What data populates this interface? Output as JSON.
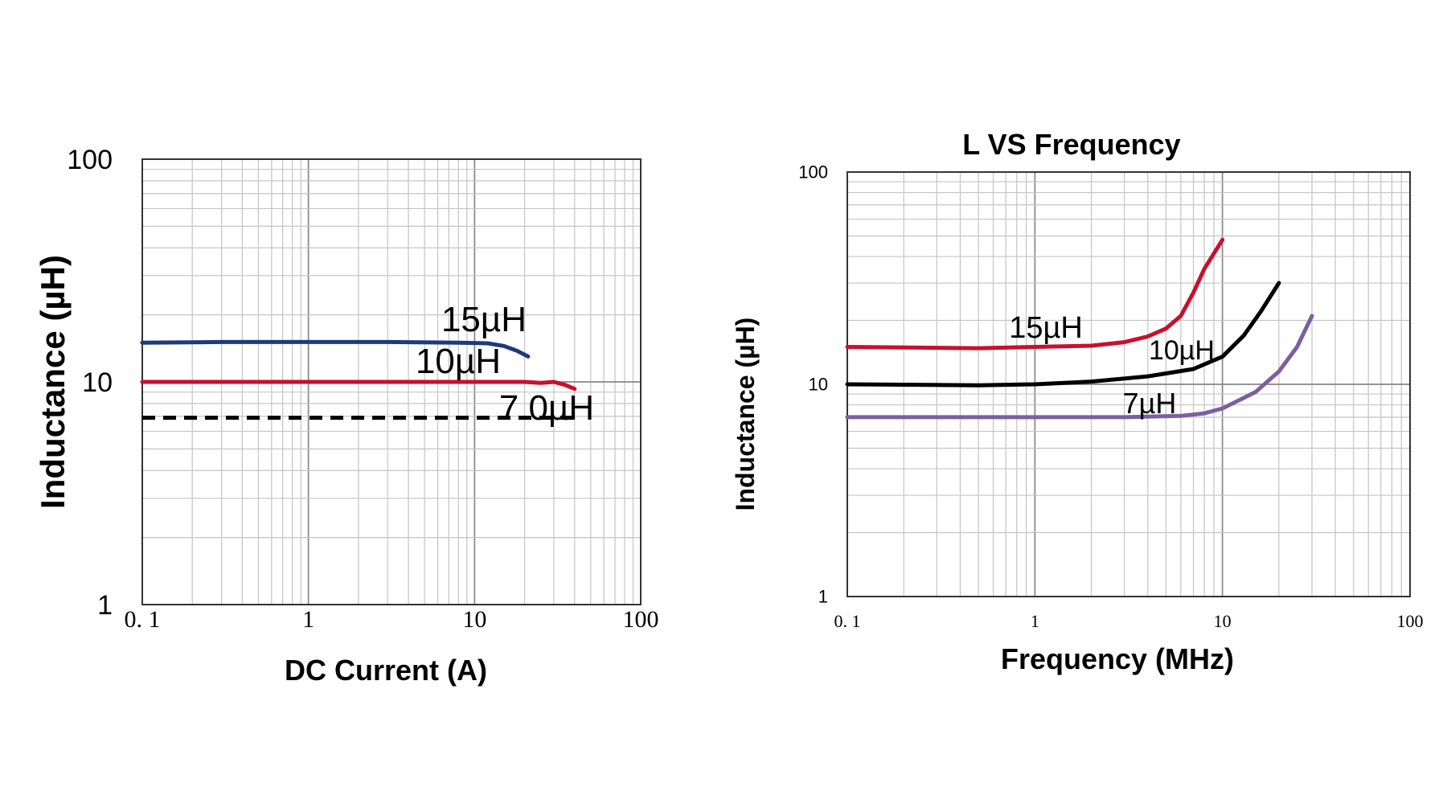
{
  "chart_data": [
    {
      "type": "line",
      "title": "",
      "xlabel": "DC Current (A)",
      "ylabel": "Inductance (µH)",
      "xscale": "log",
      "yscale": "log",
      "xlim": [
        0.1,
        100
      ],
      "ylim": [
        1,
        100
      ],
      "xticks": [
        "0. 1",
        "1",
        "10",
        "100"
      ],
      "yticks": [
        "1",
        "10",
        "100"
      ],
      "grid": true,
      "series": [
        {
          "name": "15µH",
          "color": "#1f3a7a",
          "style": "solid",
          "x": [
            0.1,
            0.3,
            1,
            3,
            8,
            12,
            15,
            18,
            21
          ],
          "y": [
            15,
            15.1,
            15.1,
            15.1,
            15,
            14.9,
            14.5,
            13.8,
            13.0
          ]
        },
        {
          "name": "10µH",
          "color": "#c8102e",
          "style": "solid",
          "x": [
            0.1,
            1,
            10,
            20,
            25,
            30,
            35,
            40
          ],
          "y": [
            10,
            10,
            10,
            10,
            9.9,
            10,
            9.7,
            9.3
          ]
        },
        {
          "name": "7.0µH",
          "color": "#000000",
          "style": "dashed",
          "x": [
            0.1,
            1,
            10,
            40
          ],
          "y": [
            6.9,
            6.9,
            6.9,
            6.9
          ]
        }
      ]
    },
    {
      "type": "line",
      "title": "L VS Frequency",
      "xlabel": "Frequency (MHz)",
      "ylabel": "Inductance (µH)",
      "xscale": "log",
      "yscale": "log",
      "xlim": [
        0.1,
        100
      ],
      "ylim": [
        1,
        100
      ],
      "xticks": [
        "0. 1",
        "1",
        "10",
        "100"
      ],
      "yticks": [
        "1",
        "10",
        "100"
      ],
      "grid": true,
      "series": [
        {
          "name": "15µH",
          "color": "#c8102e",
          "style": "solid",
          "x": [
            0.1,
            0.5,
            1,
            2,
            3,
            4,
            5,
            6,
            7,
            8,
            10
          ],
          "y": [
            15,
            14.8,
            15,
            15.2,
            15.8,
            16.8,
            18.3,
            21,
            27,
            35,
            48
          ]
        },
        {
          "name": "10µH",
          "color": "#000000",
          "style": "solid",
          "x": [
            0.1,
            0.5,
            1,
            2,
            4,
            7,
            10,
            13,
            16,
            20
          ],
          "y": [
            10,
            9.9,
            10,
            10.3,
            10.9,
            11.8,
            13.5,
            17,
            22,
            30
          ]
        },
        {
          "name": "7µH",
          "color": "#7b5fa0",
          "style": "solid",
          "x": [
            0.1,
            1,
            3,
            6,
            8,
            10,
            15,
            20,
            25,
            30
          ],
          "y": [
            7,
            7,
            7,
            7.1,
            7.3,
            7.7,
            9.2,
            11.5,
            15,
            21
          ]
        }
      ],
      "annotations": [
        "15µH",
        "10µH",
        "7µH"
      ]
    }
  ]
}
